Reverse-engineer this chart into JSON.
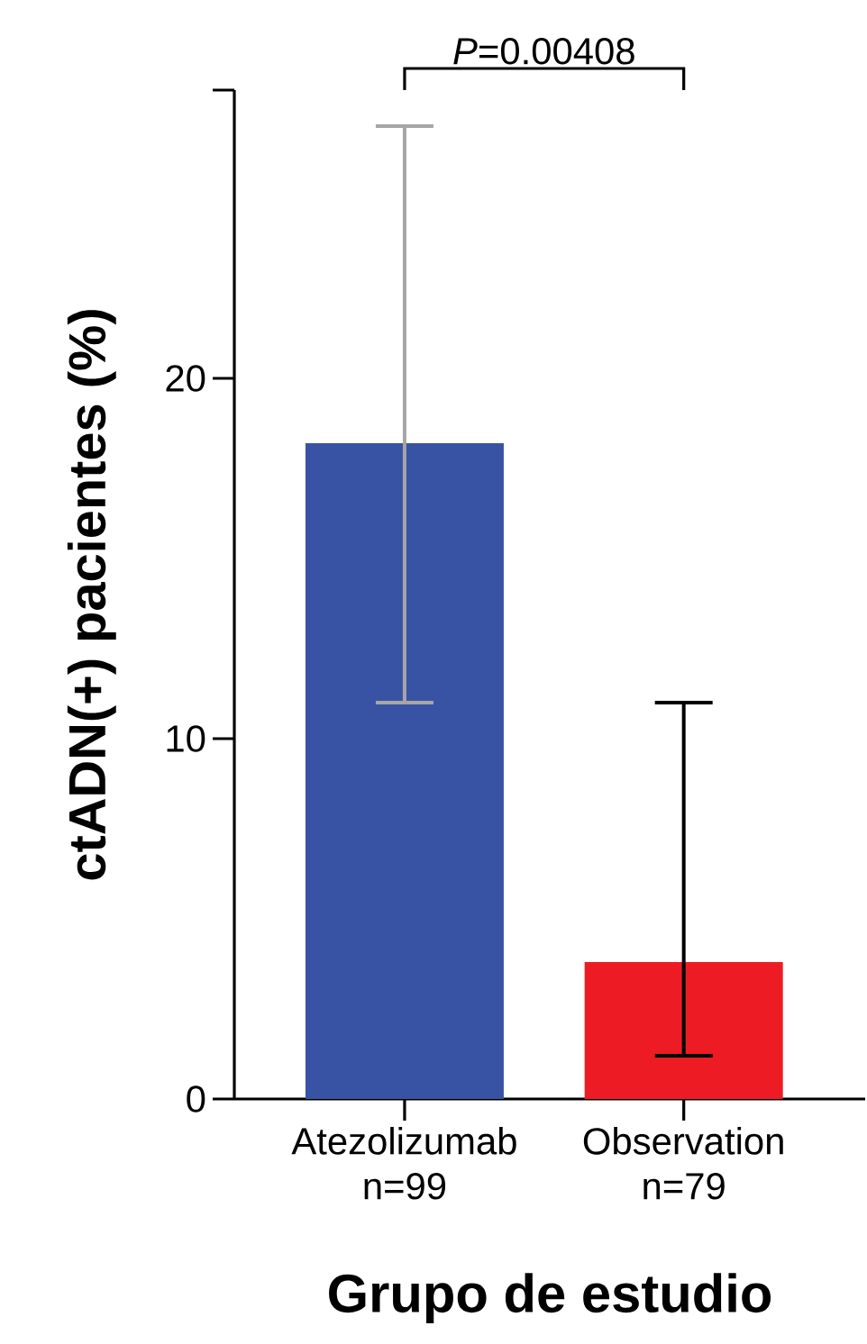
{
  "chart_data": {
    "type": "bar",
    "categories": [
      "Atezolizumab n=99",
      "Observation n=79"
    ],
    "values": [
      18.2,
      3.8
    ],
    "colors": [
      "#3953a4",
      "#ed1c24"
    ],
    "errors": [
      [
        11.0,
        27.0
      ],
      [
        1.2,
        11.0
      ]
    ],
    "ylabel": "ctADN(+) pacientes (%)",
    "xlabel": "Grupo de estudio",
    "ylim": [
      0,
      28
    ],
    "yticks": [
      0,
      10,
      20,
      {
        "value": 28,
        "label": null
      }
    ],
    "annotations": [
      "*P*=0.00408"
    ],
    "grid": false
  }
}
